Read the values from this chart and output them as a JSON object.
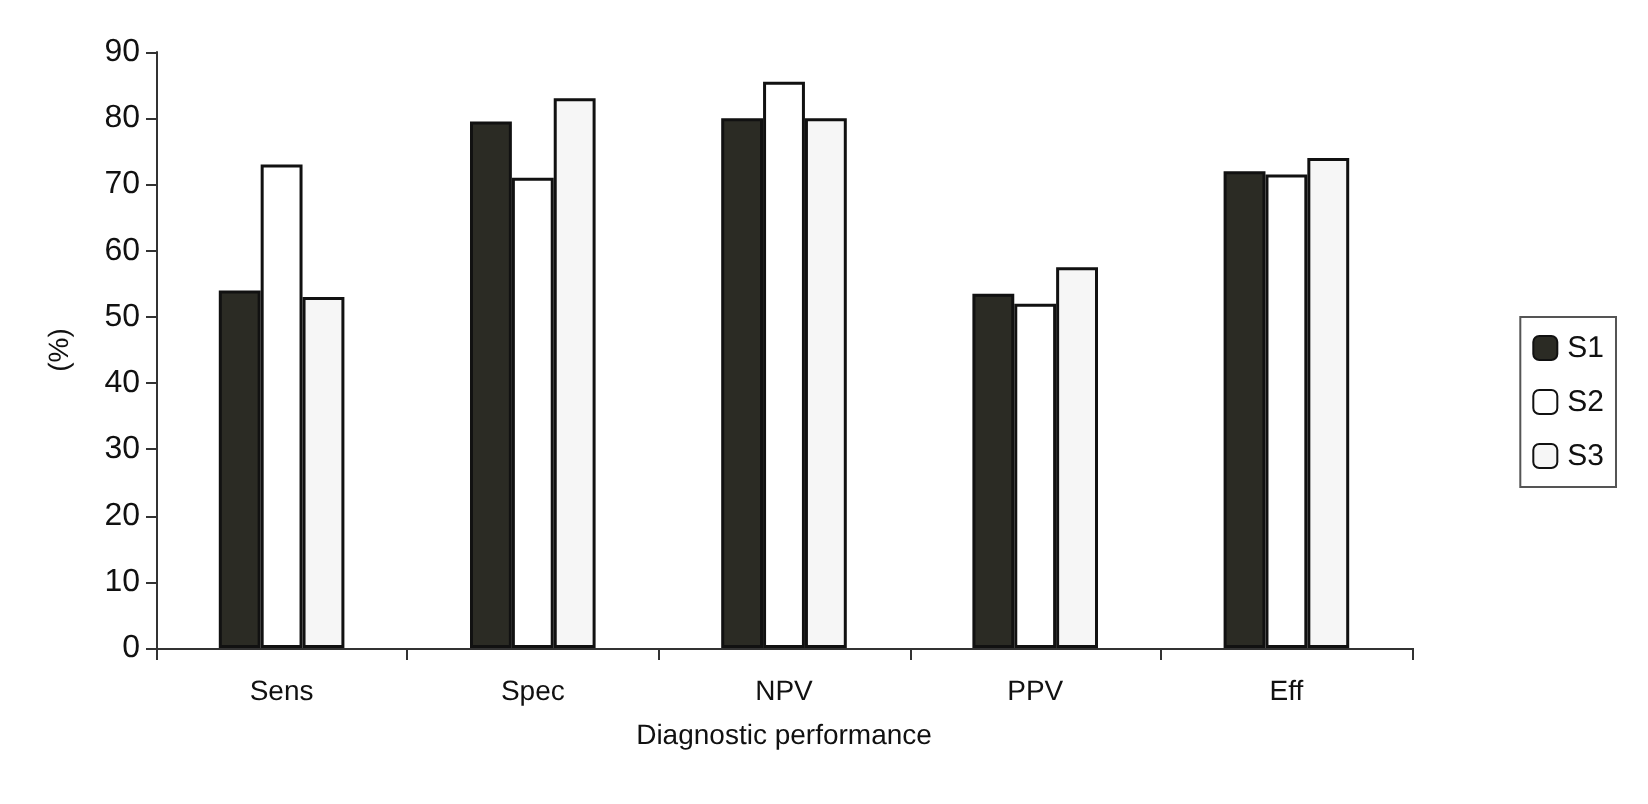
{
  "chart_data": {
    "type": "bar",
    "xlabel": "Diagnostic performance",
    "ylabel": "(%)",
    "categories": [
      "Sens",
      "Spec",
      "NPV",
      "PPV",
      "Eff"
    ],
    "series": [
      {
        "name": "S1",
        "color": "#2b2b24",
        "values": [
          54,
          79.5,
          80,
          53.5,
          72
        ]
      },
      {
        "name": "S2",
        "color": "#ffffff",
        "values": [
          73,
          71,
          85.5,
          52,
          71.5
        ]
      },
      {
        "name": "S3",
        "color": "#f6f6f6",
        "values": [
          53,
          83,
          80,
          57.5,
          74
        ]
      }
    ],
    "ylim": [
      0,
      90
    ],
    "yticks": [
      0,
      10,
      20,
      30,
      40,
      50,
      60,
      70,
      80,
      90
    ],
    "grid": false,
    "legend": "right"
  }
}
